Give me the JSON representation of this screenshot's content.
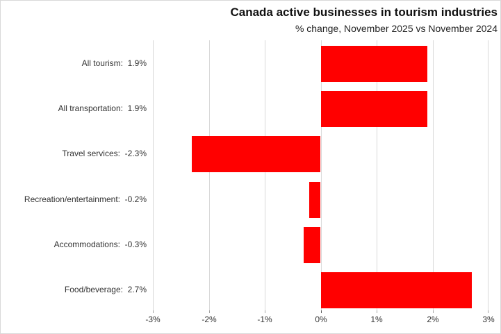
{
  "chart_data": {
    "type": "bar",
    "orientation": "horizontal",
    "title": "Canada active businesses in tourism industries",
    "subtitle": "% change, November 2025 vs November 2024",
    "categories": [
      "All tourism",
      "All transportation",
      "Travel services",
      "Recreation/entertainment",
      "Accommodations",
      "Food/beverage"
    ],
    "values": [
      1.9,
      1.9,
      -2.3,
      -0.2,
      -0.3,
      2.7
    ],
    "category_labels": [
      "All tourism:  1.9%",
      "All transportation:  1.9%",
      "Travel services:  -2.3%",
      "Recreation/entertainment:  -0.2%",
      "Accommodations:  -0.3%",
      "Food/beverage:  2.7%"
    ],
    "xlabel": "",
    "ylabel": "",
    "xlim": [
      -3,
      3
    ],
    "x_tick_labels": [
      "-3%",
      "-2%",
      "-1%",
      "0%",
      "1%",
      "2%",
      "3%"
    ],
    "grid": true,
    "legend": false,
    "colors": {
      "bar": "#FF0000",
      "gridline": "#D9D9D9",
      "tick": "#A6A6A6",
      "zero_tick": "#595959",
      "axis_text": "#333333"
    }
  }
}
